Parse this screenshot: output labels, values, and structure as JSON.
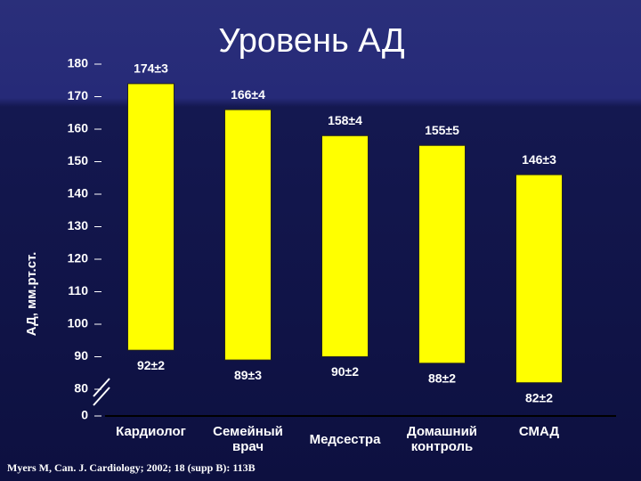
{
  "chart_data": {
    "type": "floating-bar",
    "title": "Уровень АД",
    "ylabel": "АД, мм.рт.ст.",
    "categories": [
      "Кардиолог",
      "Семейный врач",
      "Медсестра",
      "Домашний контроль",
      "СМАД"
    ],
    "high": [
      174,
      166,
      158,
      155,
      146
    ],
    "high_labels": [
      "174±3",
      "166±4",
      "158±4",
      "155±5",
      "146±3"
    ],
    "low": [
      92,
      89,
      90,
      88,
      82
    ],
    "low_labels": [
      "92±2",
      "89±3",
      "90±2",
      "88±2",
      "82±2"
    ],
    "color": "#ffff00",
    "ylim": [
      0,
      180
    ],
    "axis_break": [
      0,
      80
    ],
    "yticks": [
      0,
      80,
      90,
      100,
      110,
      120,
      130,
      140,
      150,
      160,
      170,
      180
    ],
    "source": "Myers M, Can. J. Cardiology; 2002; 18 (supp B): 113B"
  }
}
